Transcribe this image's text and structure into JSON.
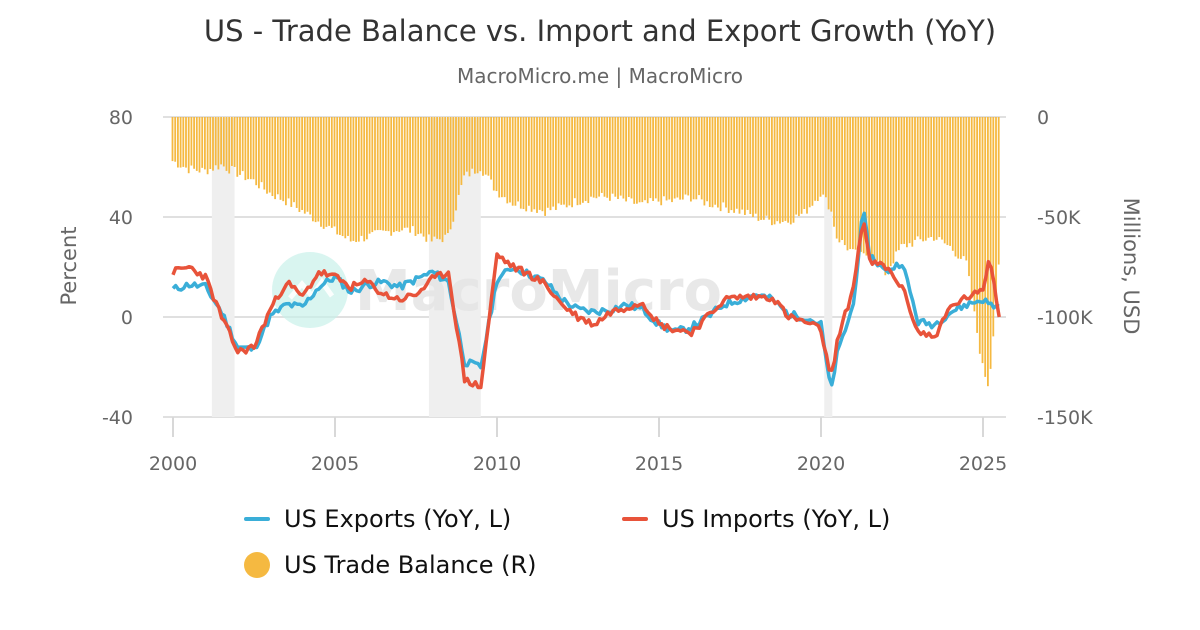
{
  "header": {
    "title": "US - Trade Balance vs. Import and Export Growth (YoY)",
    "subtitle": "MacroMicro.me | MacroMicro"
  },
  "watermark": "MacroMicro",
  "legend": {
    "exports": "US Exports (YoY, L)",
    "imports": "US Imports (YoY, L)",
    "balance": "US Trade Balance (R)"
  },
  "colors": {
    "exports": "#3aaed8",
    "imports": "#e8533a",
    "balance": "#f5b941",
    "recession": "#efefef",
    "grid": "#e0e0e0"
  },
  "chart_data": {
    "type": "line+bar",
    "title": "US - Trade Balance vs. Import and Export Growth (YoY)",
    "subtitle": "MacroMicro.me | MacroMicro",
    "xlabel": "",
    "ylabel_left": "Percent",
    "ylabel_right": "Millions, USD",
    "x_ticks": [
      "2000",
      "2005",
      "2010",
      "2015",
      "2020",
      "2025"
    ],
    "y_left_ticks": [
      "80",
      "40",
      "0",
      "-40"
    ],
    "y_left_range": [
      -40,
      80
    ],
    "y_right_ticks": [
      "0",
      "-50K",
      "-100K",
      "-150K"
    ],
    "y_right_range": [
      -150000,
      0
    ],
    "grid": true,
    "legend_position": "bottom",
    "recessions": [
      [
        2001.2,
        2001.9
      ],
      [
        2007.9,
        2009.5
      ],
      [
        2020.1,
        2020.35
      ]
    ],
    "x": [
      2000.0,
      2000.5,
      2001.0,
      2001.5,
      2002.0,
      2002.5,
      2003.0,
      2003.5,
      2004.0,
      2004.5,
      2005.0,
      2005.5,
      2006.0,
      2006.5,
      2007.0,
      2007.5,
      2008.0,
      2008.5,
      2009.0,
      2009.5,
      2010.0,
      2010.5,
      2011.0,
      2011.5,
      2012.0,
      2012.5,
      2013.0,
      2013.5,
      2014.0,
      2014.5,
      2015.0,
      2015.5,
      2016.0,
      2016.5,
      2017.0,
      2017.5,
      2018.0,
      2018.5,
      2019.0,
      2019.5,
      2020.0,
      2020.3,
      2020.5,
      2021.0,
      2021.3,
      2021.5,
      2022.0,
      2022.5,
      2023.0,
      2023.5,
      2024.0,
      2024.5,
      2025.0,
      2025.2,
      2025.5
    ],
    "series": [
      {
        "name": "US Exports (YoY, L)",
        "axis": "left",
        "type": "line",
        "values": [
          11,
          13,
          12,
          2,
          -12,
          -13,
          0,
          5,
          4,
          12,
          16,
          10,
          13,
          14,
          12,
          15,
          18,
          14,
          -18,
          -20,
          15,
          20,
          17,
          14,
          7,
          3,
          2,
          3,
          5,
          3,
          -3,
          -6,
          -4,
          0,
          5,
          7,
          9,
          7,
          1,
          0,
          -3,
          -30,
          -15,
          5,
          43,
          25,
          18,
          22,
          -2,
          -3,
          2,
          5,
          7,
          5,
          4
        ]
      },
      {
        "name": "US Imports (YoY, L)",
        "axis": "left",
        "type": "line",
        "values": [
          18,
          20,
          16,
          0,
          -14,
          -12,
          3,
          14,
          8,
          18,
          16,
          12,
          14,
          9,
          7,
          9,
          15,
          18,
          -25,
          -28,
          25,
          20,
          17,
          13,
          5,
          0,
          -3,
          2,
          4,
          6,
          -3,
          -5,
          -6,
          0,
          7,
          8,
          8,
          8,
          0,
          -2,
          -5,
          -25,
          -10,
          12,
          40,
          22,
          20,
          12,
          -6,
          -8,
          4,
          8,
          10,
          25,
          0
        ]
      },
      {
        "name": "US Trade Balance (R)",
        "axis": "right",
        "type": "bar",
        "values_millions": [
          -22000,
          -26000,
          -27000,
          -24000,
          -28000,
          -32000,
          -38000,
          -42000,
          -47000,
          -52000,
          -57000,
          -62000,
          -60000,
          -58000,
          -56000,
          -57000,
          -62000,
          -60000,
          -30000,
          -25000,
          -37000,
          -43000,
          -45000,
          -47000,
          -45000,
          -42000,
          -40000,
          -40000,
          -42000,
          -44000,
          -42000,
          -42000,
          -40000,
          -43000,
          -45000,
          -47000,
          -50000,
          -52000,
          -52000,
          -48000,
          -38000,
          -45000,
          -60000,
          -68000,
          -70000,
          -68000,
          -78000,
          -65000,
          -62000,
          -60000,
          -65000,
          -73000,
          -125000,
          -135000,
          -73000
        ]
      }
    ]
  }
}
